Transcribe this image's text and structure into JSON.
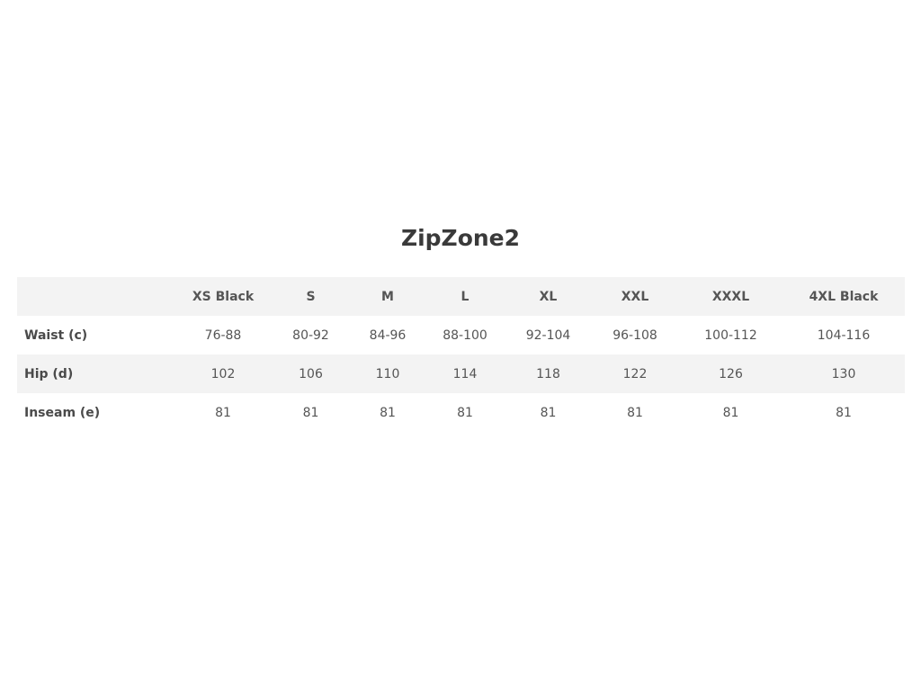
{
  "title": "ZipZone2",
  "table": {
    "headers": [
      "",
      "XS Black",
      "S",
      "M",
      "L",
      "XL",
      "XXL",
      "XXXL",
      "4XL Black"
    ],
    "rows": [
      {
        "label": "Waist (c)",
        "values": [
          "76-88",
          "80-92",
          "84-96",
          "88-100",
          "92-104",
          "96-108",
          "100-112",
          "104-116"
        ]
      },
      {
        "label": "Hip (d)",
        "values": [
          "102",
          "106",
          "110",
          "114",
          "118",
          "122",
          "126",
          "130"
        ]
      },
      {
        "label": "Inseam (e)",
        "values": [
          "81",
          "81",
          "81",
          "81",
          "81",
          "81",
          "81",
          "81"
        ]
      }
    ]
  }
}
